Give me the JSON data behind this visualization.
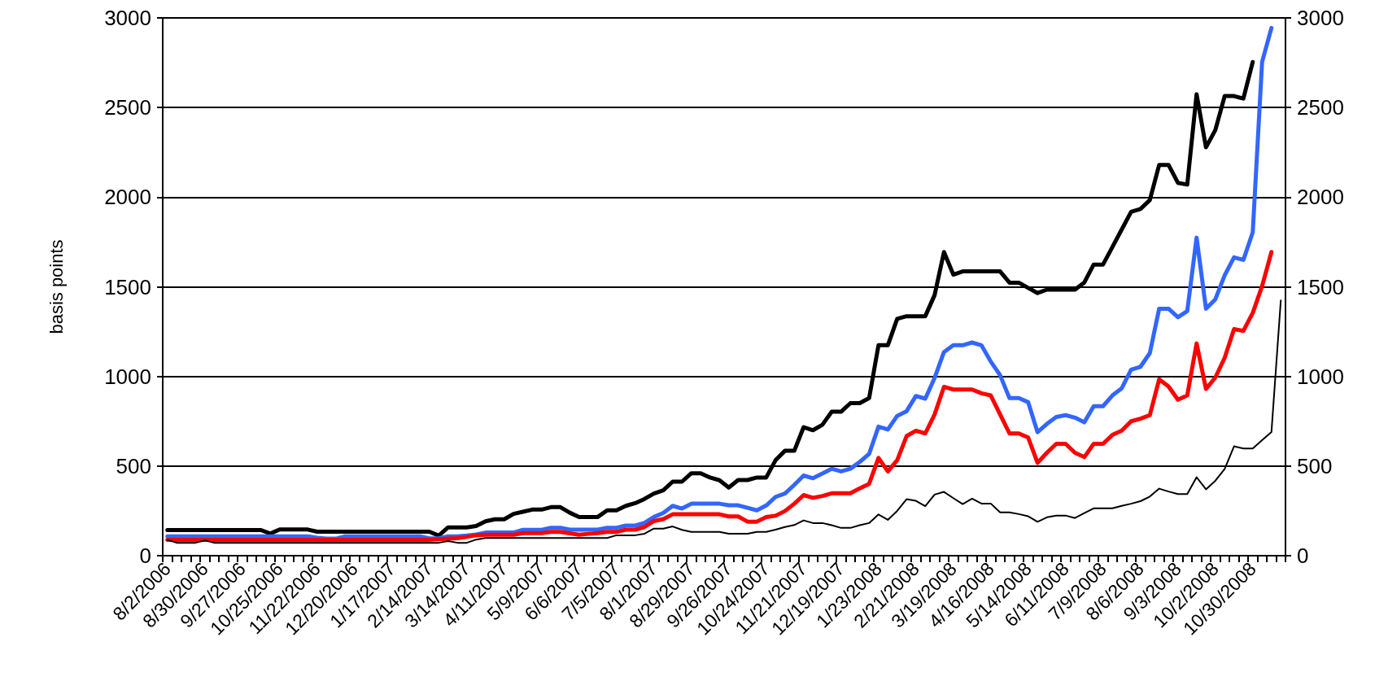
{
  "chart_data": {
    "type": "line",
    "ylabel": "basis points",
    "categories": [
      "8/2/2006",
      null,
      null,
      null,
      "8/30/2006",
      null,
      null,
      null,
      "9/27/2006",
      null,
      null,
      null,
      "10/25/2006",
      null,
      null,
      null,
      "11/22/2006",
      null,
      null,
      null,
      "12/20/2006",
      null,
      null,
      null,
      "1/17/2007",
      null,
      null,
      null,
      "2/14/2007",
      null,
      null,
      null,
      "3/14/2007",
      null,
      null,
      null,
      "4/11/2007",
      null,
      null,
      null,
      "5/9/2007",
      null,
      null,
      null,
      "6/6/2007",
      null,
      null,
      null,
      "7/5/2007",
      null,
      null,
      null,
      "8/1/2007",
      null,
      null,
      null,
      "8/29/2007",
      null,
      null,
      null,
      "9/26/2007",
      null,
      null,
      null,
      "10/24/2007",
      null,
      null,
      null,
      "11/21/2007",
      null,
      null,
      null,
      "12/19/2007",
      null,
      null,
      null,
      "1/23/2008",
      null,
      null,
      null,
      "2/21/2008",
      null,
      null,
      null,
      "3/19/2008",
      null,
      null,
      null,
      "4/16/2008",
      null,
      null,
      null,
      "5/14/2008",
      null,
      null,
      null,
      "6/11/2008",
      null,
      null,
      null,
      "7/9/2008",
      null,
      null,
      null,
      "8/6/2008",
      null,
      null,
      null,
      "9/3/2008",
      null,
      null,
      null,
      "10/2/2008",
      null,
      null,
      null,
      "10/30/2008",
      null,
      null,
      null
    ],
    "series": [
      {
        "color": "#000000",
        "values": [
          143,
          143,
          143,
          143,
          143,
          143,
          143,
          143,
          143,
          143,
          143,
          123,
          146,
          146,
          146,
          146,
          134,
          134,
          134,
          134,
          134,
          134,
          134,
          134,
          134,
          134,
          134,
          134,
          134,
          112,
          158,
          158,
          158,
          166,
          192,
          203,
          203,
          233,
          245,
          257,
          257,
          271,
          271,
          240,
          216,
          216,
          216,
          253,
          253,
          278,
          293,
          317,
          347,
          365,
          413,
          413,
          460,
          460,
          436,
          421,
          380,
          422,
          422,
          436,
          436,
          533,
          585,
          585,
          717,
          700,
          730,
          803,
          803,
          851,
          851,
          879,
          1174,
          1174,
          1321,
          1336,
          1336,
          1336,
          1454,
          1694,
          1568,
          1586,
          1586,
          1586,
          1586,
          1586,
          1523,
          1523,
          1494,
          1465,
          1484,
          1484,
          1484,
          1484,
          1524,
          1624,
          1624,
          1722,
          1820,
          1918,
          1934,
          1984,
          2180,
          2180,
          2080,
          2070,
          2574,
          2278,
          2374,
          2564,
          2564,
          2550,
          2754,
          null,
          null,
          null
        ]
      },
      {
        "color": "#3366ff",
        "values": [
          108,
          108,
          108,
          108,
          108,
          108,
          108,
          108,
          108,
          108,
          108,
          108,
          108,
          108,
          108,
          108,
          100,
          95,
          95,
          108,
          108,
          108,
          108,
          108,
          108,
          108,
          108,
          108,
          97,
          97,
          108,
          108,
          112,
          118,
          129,
          129,
          129,
          129,
          144,
          144,
          144,
          156,
          156,
          145,
          145,
          145,
          145,
          156,
          156,
          168,
          168,
          183,
          216,
          238,
          278,
          263,
          290,
          290,
          290,
          290,
          281,
          281,
          267,
          253,
          280,
          328,
          347,
          395,
          447,
          432,
          458,
          485,
          470,
          485,
          523,
          568,
          720,
          704,
          780,
          806,
          891,
          876,
          992,
          1136,
          1174,
          1174,
          1189,
          1174,
          1083,
          1007,
          879,
          879,
          856,
          689,
          735,
          774,
          784,
          770,
          744,
          834,
          834,
          894,
          934,
          1038,
          1054,
          1130,
          1378,
          1378,
          1330,
          1364,
          1774,
          1378,
          1430,
          1564,
          1664,
          1650,
          1804,
          2754,
          2944,
          null
        ]
      },
      {
        "color": "#ff0000",
        "values": [
          89,
          89,
          89,
          89,
          89,
          89,
          89,
          89,
          89,
          89,
          89,
          89,
          89,
          89,
          89,
          89,
          89,
          89,
          89,
          89,
          89,
          89,
          89,
          89,
          89,
          89,
          89,
          89,
          89,
          92,
          95,
          98,
          105,
          114,
          117,
          117,
          117,
          117,
          126,
          126,
          126,
          133,
          133,
          125,
          117,
          122,
          126,
          133,
          133,
          145,
          145,
          160,
          193,
          204,
          231,
          231,
          231,
          231,
          231,
          231,
          219,
          219,
          190,
          190,
          216,
          223,
          249,
          290,
          338,
          323,
          333,
          348,
          348,
          348,
          376,
          401,
          545,
          470,
          533,
          667,
          697,
          682,
          788,
          942,
          927,
          927,
          927,
          906,
          894,
          788,
          682,
          682,
          659,
          518,
          574,
          624,
          624,
          574,
          550,
          624,
          624,
          674,
          698,
          750,
          764,
          784,
          984,
          944,
          870,
          894,
          1184,
          930,
          994,
          1104,
          1264,
          1254,
          1354,
          1504,
          1694,
          null
        ]
      },
      {
        "color": "#000000",
        "values": [
          88,
          72,
          72,
          72,
          85,
          72,
          72,
          72,
          72,
          72,
          72,
          72,
          72,
          72,
          72,
          72,
          72,
          72,
          72,
          72,
          72,
          72,
          72,
          72,
          72,
          72,
          72,
          72,
          72,
          72,
          82,
          72,
          72,
          90,
          99,
          99,
          99,
          99,
          99,
          99,
          99,
          99,
          99,
          99,
          99,
          99,
          99,
          99,
          114,
          114,
          114,
          123,
          151,
          151,
          163,
          144,
          133,
          133,
          133,
          133,
          123,
          123,
          123,
          133,
          133,
          145,
          160,
          171,
          197,
          182,
          182,
          170,
          155,
          155,
          170,
          182,
          230,
          200,
          250,
          315,
          306,
          276,
          341,
          356,
          321,
          288,
          318,
          291,
          291,
          242,
          242,
          232,
          220,
          189,
          214,
          224,
          224,
          210,
          238,
          264,
          264,
          264,
          278,
          290,
          304,
          330,
          374,
          358,
          344,
          344,
          438,
          370,
          418,
          484,
          610,
          598,
          598,
          644,
          690,
          1424
        ]
      }
    ],
    "ylim": [
      0,
      3000
    ],
    "yticks": [
      0,
      500,
      1000,
      1500,
      2000,
      2500,
      3000
    ],
    "y2lim": [
      0,
      3000
    ],
    "y2ticks": [
      0,
      500,
      1000,
      1500,
      2000,
      2500,
      3000
    ],
    "grid": "y",
    "marker": "none",
    "line_style": "solid"
  }
}
